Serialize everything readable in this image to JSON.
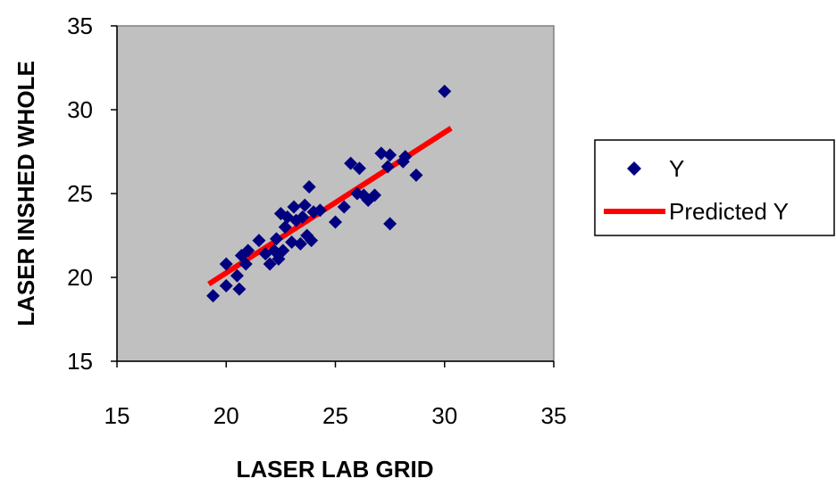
{
  "chart_data": {
    "type": "scatter",
    "xlabel": "LASER LAB GRID",
    "ylabel": "LASER INSHED WHOLE",
    "xlim": [
      15,
      35
    ],
    "ylim": [
      15,
      35
    ],
    "xticks": [
      "15",
      "20",
      "25",
      "30",
      "35"
    ],
    "yticks": [
      "15",
      "20",
      "25",
      "30",
      "35"
    ],
    "grid": false,
    "legend_position": "right",
    "plot_background": "#c0c0c0",
    "series": [
      {
        "name": "Y",
        "kind": "scatter",
        "marker": "diamond",
        "color": "#000080",
        "points": [
          [
            19.4,
            18.9
          ],
          [
            20.0,
            20.8
          ],
          [
            20.0,
            19.5
          ],
          [
            20.5,
            20.1
          ],
          [
            20.6,
            19.3
          ],
          [
            20.7,
            21.3
          ],
          [
            20.9,
            20.8
          ],
          [
            21.0,
            21.6
          ],
          [
            21.5,
            22.2
          ],
          [
            21.8,
            21.4
          ],
          [
            22.0,
            20.8
          ],
          [
            22.2,
            21.6
          ],
          [
            22.3,
            22.3
          ],
          [
            22.4,
            21.1
          ],
          [
            22.5,
            23.8
          ],
          [
            22.6,
            21.6
          ],
          [
            22.7,
            23.0
          ],
          [
            22.8,
            23.6
          ],
          [
            23.0,
            22.1
          ],
          [
            23.1,
            24.2
          ],
          [
            23.2,
            23.4
          ],
          [
            23.4,
            22.0
          ],
          [
            23.5,
            23.6
          ],
          [
            23.6,
            24.3
          ],
          [
            23.7,
            22.5
          ],
          [
            23.8,
            25.4
          ],
          [
            23.9,
            22.2
          ],
          [
            24.0,
            23.9
          ],
          [
            24.3,
            24.0
          ],
          [
            25.0,
            23.3
          ],
          [
            25.4,
            24.2
          ],
          [
            25.7,
            26.8
          ],
          [
            26.0,
            25.0
          ],
          [
            26.1,
            26.5
          ],
          [
            26.3,
            24.9
          ],
          [
            26.5,
            24.6
          ],
          [
            26.8,
            24.9
          ],
          [
            27.1,
            27.4
          ],
          [
            27.4,
            26.6
          ],
          [
            27.5,
            27.3
          ],
          [
            27.5,
            23.2
          ],
          [
            28.1,
            26.9
          ],
          [
            28.2,
            27.2
          ],
          [
            28.7,
            26.1
          ],
          [
            30.0,
            31.1
          ]
        ]
      },
      {
        "name": "Predicted Y",
        "kind": "line",
        "color": "#ff0000",
        "points": [
          [
            19.2,
            19.6
          ],
          [
            30.3,
            28.9
          ]
        ]
      }
    ]
  }
}
